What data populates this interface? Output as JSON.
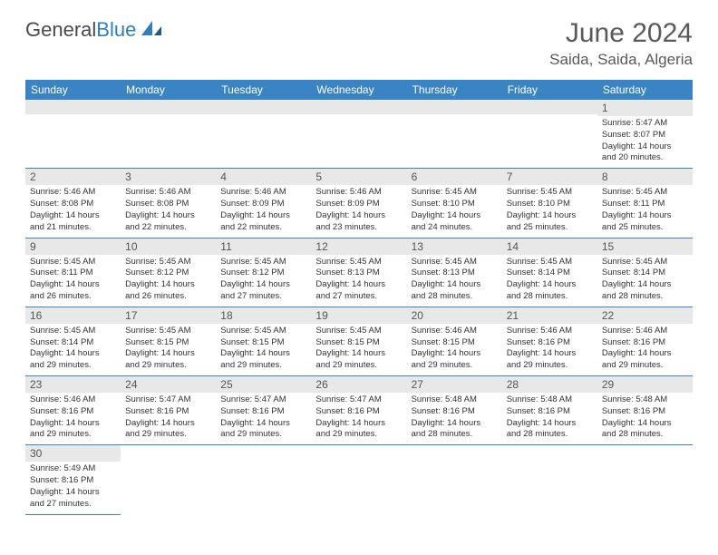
{
  "logo": {
    "text1": "General",
    "text2": "Blue"
  },
  "title": "June 2024",
  "location": "Saida, Saida, Algeria",
  "colors": {
    "header_bg": "#3b84c4",
    "header_text": "#ffffff",
    "daynum_bg": "#e8e8e8",
    "border": "#3b84c4",
    "logo_gray": "#4a4a4a",
    "logo_blue": "#2f7ec0"
  },
  "weekdays": [
    "Sunday",
    "Monday",
    "Tuesday",
    "Wednesday",
    "Thursday",
    "Friday",
    "Saturday"
  ],
  "weeks": [
    [
      null,
      null,
      null,
      null,
      null,
      null,
      {
        "n": "1",
        "sr": "Sunrise: 5:47 AM",
        "ss": "Sunset: 8:07 PM",
        "d1": "Daylight: 14 hours",
        "d2": "and 20 minutes."
      }
    ],
    [
      {
        "n": "2",
        "sr": "Sunrise: 5:46 AM",
        "ss": "Sunset: 8:08 PM",
        "d1": "Daylight: 14 hours",
        "d2": "and 21 minutes."
      },
      {
        "n": "3",
        "sr": "Sunrise: 5:46 AM",
        "ss": "Sunset: 8:08 PM",
        "d1": "Daylight: 14 hours",
        "d2": "and 22 minutes."
      },
      {
        "n": "4",
        "sr": "Sunrise: 5:46 AM",
        "ss": "Sunset: 8:09 PM",
        "d1": "Daylight: 14 hours",
        "d2": "and 22 minutes."
      },
      {
        "n": "5",
        "sr": "Sunrise: 5:46 AM",
        "ss": "Sunset: 8:09 PM",
        "d1": "Daylight: 14 hours",
        "d2": "and 23 minutes."
      },
      {
        "n": "6",
        "sr": "Sunrise: 5:45 AM",
        "ss": "Sunset: 8:10 PM",
        "d1": "Daylight: 14 hours",
        "d2": "and 24 minutes."
      },
      {
        "n": "7",
        "sr": "Sunrise: 5:45 AM",
        "ss": "Sunset: 8:10 PM",
        "d1": "Daylight: 14 hours",
        "d2": "and 25 minutes."
      },
      {
        "n": "8",
        "sr": "Sunrise: 5:45 AM",
        "ss": "Sunset: 8:11 PM",
        "d1": "Daylight: 14 hours",
        "d2": "and 25 minutes."
      }
    ],
    [
      {
        "n": "9",
        "sr": "Sunrise: 5:45 AM",
        "ss": "Sunset: 8:11 PM",
        "d1": "Daylight: 14 hours",
        "d2": "and 26 minutes."
      },
      {
        "n": "10",
        "sr": "Sunrise: 5:45 AM",
        "ss": "Sunset: 8:12 PM",
        "d1": "Daylight: 14 hours",
        "d2": "and 26 minutes."
      },
      {
        "n": "11",
        "sr": "Sunrise: 5:45 AM",
        "ss": "Sunset: 8:12 PM",
        "d1": "Daylight: 14 hours",
        "d2": "and 27 minutes."
      },
      {
        "n": "12",
        "sr": "Sunrise: 5:45 AM",
        "ss": "Sunset: 8:13 PM",
        "d1": "Daylight: 14 hours",
        "d2": "and 27 minutes."
      },
      {
        "n": "13",
        "sr": "Sunrise: 5:45 AM",
        "ss": "Sunset: 8:13 PM",
        "d1": "Daylight: 14 hours",
        "d2": "and 28 minutes."
      },
      {
        "n": "14",
        "sr": "Sunrise: 5:45 AM",
        "ss": "Sunset: 8:14 PM",
        "d1": "Daylight: 14 hours",
        "d2": "and 28 minutes."
      },
      {
        "n": "15",
        "sr": "Sunrise: 5:45 AM",
        "ss": "Sunset: 8:14 PM",
        "d1": "Daylight: 14 hours",
        "d2": "and 28 minutes."
      }
    ],
    [
      {
        "n": "16",
        "sr": "Sunrise: 5:45 AM",
        "ss": "Sunset: 8:14 PM",
        "d1": "Daylight: 14 hours",
        "d2": "and 29 minutes."
      },
      {
        "n": "17",
        "sr": "Sunrise: 5:45 AM",
        "ss": "Sunset: 8:15 PM",
        "d1": "Daylight: 14 hours",
        "d2": "and 29 minutes."
      },
      {
        "n": "18",
        "sr": "Sunrise: 5:45 AM",
        "ss": "Sunset: 8:15 PM",
        "d1": "Daylight: 14 hours",
        "d2": "and 29 minutes."
      },
      {
        "n": "19",
        "sr": "Sunrise: 5:45 AM",
        "ss": "Sunset: 8:15 PM",
        "d1": "Daylight: 14 hours",
        "d2": "and 29 minutes."
      },
      {
        "n": "20",
        "sr": "Sunrise: 5:46 AM",
        "ss": "Sunset: 8:15 PM",
        "d1": "Daylight: 14 hours",
        "d2": "and 29 minutes."
      },
      {
        "n": "21",
        "sr": "Sunrise: 5:46 AM",
        "ss": "Sunset: 8:16 PM",
        "d1": "Daylight: 14 hours",
        "d2": "and 29 minutes."
      },
      {
        "n": "22",
        "sr": "Sunrise: 5:46 AM",
        "ss": "Sunset: 8:16 PM",
        "d1": "Daylight: 14 hours",
        "d2": "and 29 minutes."
      }
    ],
    [
      {
        "n": "23",
        "sr": "Sunrise: 5:46 AM",
        "ss": "Sunset: 8:16 PM",
        "d1": "Daylight: 14 hours",
        "d2": "and 29 minutes."
      },
      {
        "n": "24",
        "sr": "Sunrise: 5:47 AM",
        "ss": "Sunset: 8:16 PM",
        "d1": "Daylight: 14 hours",
        "d2": "and 29 minutes."
      },
      {
        "n": "25",
        "sr": "Sunrise: 5:47 AM",
        "ss": "Sunset: 8:16 PM",
        "d1": "Daylight: 14 hours",
        "d2": "and 29 minutes."
      },
      {
        "n": "26",
        "sr": "Sunrise: 5:47 AM",
        "ss": "Sunset: 8:16 PM",
        "d1": "Daylight: 14 hours",
        "d2": "and 29 minutes."
      },
      {
        "n": "27",
        "sr": "Sunrise: 5:48 AM",
        "ss": "Sunset: 8:16 PM",
        "d1": "Daylight: 14 hours",
        "d2": "and 28 minutes."
      },
      {
        "n": "28",
        "sr": "Sunrise: 5:48 AM",
        "ss": "Sunset: 8:16 PM",
        "d1": "Daylight: 14 hours",
        "d2": "and 28 minutes."
      },
      {
        "n": "29",
        "sr": "Sunrise: 5:48 AM",
        "ss": "Sunset: 8:16 PM",
        "d1": "Daylight: 14 hours",
        "d2": "and 28 minutes."
      }
    ],
    [
      {
        "n": "30",
        "sr": "Sunrise: 5:49 AM",
        "ss": "Sunset: 8:16 PM",
        "d1": "Daylight: 14 hours",
        "d2": "and 27 minutes."
      },
      null,
      null,
      null,
      null,
      null,
      null
    ]
  ]
}
